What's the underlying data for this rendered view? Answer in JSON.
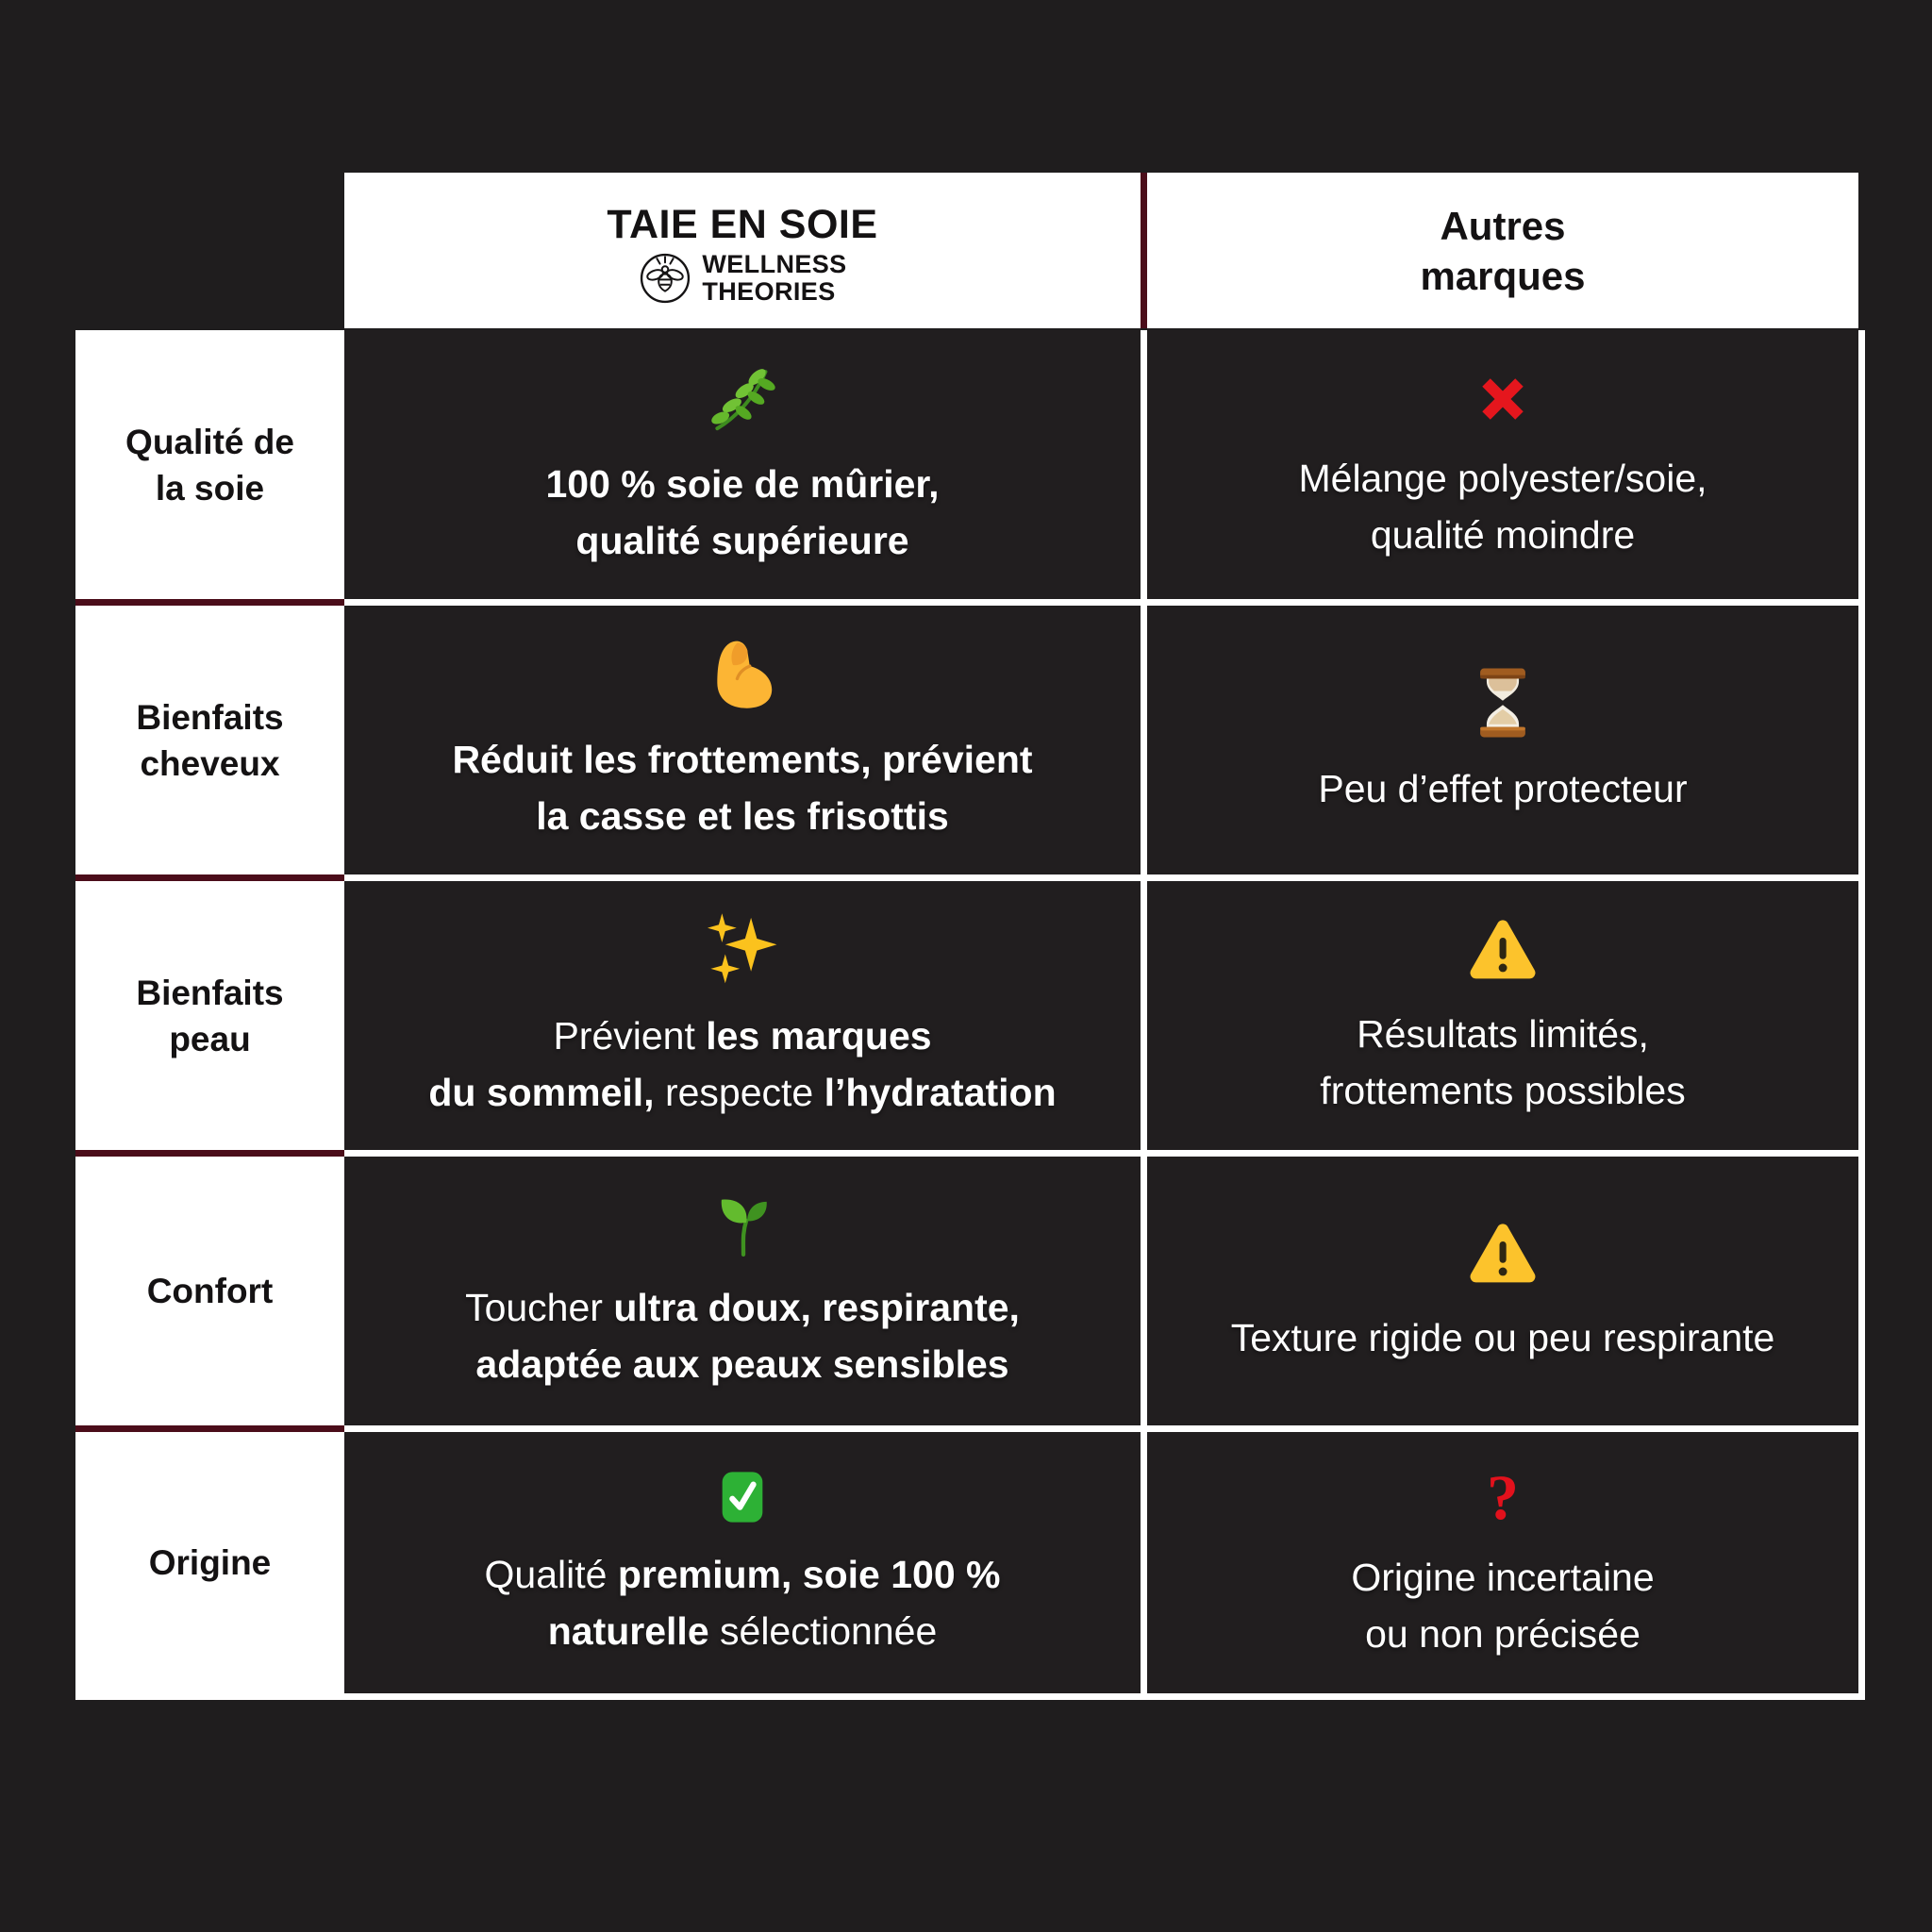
{
  "header": {
    "brand_title": "TAIE EN SOIE",
    "brand_name_line1": "WELLNESS",
    "brand_name_line2": "THEORIES",
    "brand_logo": "bee-logo-icon",
    "others_line1": "Autres",
    "others_line2": "marques"
  },
  "colors": {
    "background_dark": "#1f1d1e",
    "cell_dark": "#211e1f",
    "divider_maroon": "#4b0d1a",
    "divider_white": "#ffffff",
    "negative_red": "#e5161d",
    "warning_yellow": "#fbc32d",
    "positive_green": "#2db135",
    "question_red": "#e2111c"
  },
  "table": {
    "rows": [
      {
        "id": "qualite-de-la-soie",
        "label_lines": [
          "Qualité de",
          "la soie"
        ],
        "brand_cell": {
          "icon": "herb-icon",
          "lines": [
            [
              {
                "text": "100 % soie de mûrier,",
                "bold": true
              }
            ],
            [
              {
                "text": "qualité supérieure",
                "bold": true
              }
            ]
          ]
        },
        "others_cell": {
          "icon": "cross-mark-icon",
          "lines": [
            [
              {
                "text": "Mélange polyester/soie,"
              }
            ],
            [
              {
                "text": "qualité moindre"
              }
            ]
          ]
        }
      },
      {
        "id": "bienfaits-cheveux",
        "label_lines": [
          "Bienfaits",
          "cheveux"
        ],
        "brand_cell": {
          "icon": "flexed-biceps-icon",
          "lines": [
            [
              {
                "text": "Réduit les frottements, prévient",
                "bold": true
              }
            ],
            [
              {
                "text": "la casse et les frisottis",
                "bold": true
              }
            ]
          ]
        },
        "others_cell": {
          "icon": "hourglass-icon",
          "lines": [
            [
              {
                "text": "Peu d’effet protecteur"
              }
            ]
          ]
        }
      },
      {
        "id": "bienfaits-peau",
        "label_lines": [
          "Bienfaits",
          "peau"
        ],
        "brand_cell": {
          "icon": "sparkles-icon",
          "lines": [
            [
              {
                "text": "Prévient "
              },
              {
                "text": "les marques",
                "bold": true
              }
            ],
            [
              {
                "text": "du sommeil,",
                "bold": true
              },
              {
                "text": " respecte "
              },
              {
                "text": "l’hydratation",
                "bold": true
              }
            ]
          ]
        },
        "others_cell": {
          "icon": "warning-icon",
          "lines": [
            [
              {
                "text": "Résultats limités,"
              }
            ],
            [
              {
                "text": "frottements possibles"
              }
            ]
          ]
        }
      },
      {
        "id": "confort",
        "label_lines": [
          "Confort"
        ],
        "brand_cell": {
          "icon": "seedling-icon",
          "lines": [
            [
              {
                "text": "Toucher "
              },
              {
                "text": "ultra doux, respirante,",
                "bold": true
              }
            ],
            [
              {
                "text": "adaptée aux peaux sensibles",
                "bold": true
              }
            ]
          ]
        },
        "others_cell": {
          "icon": "warning-icon",
          "lines": [
            [
              {
                "text": "Texture rigide ou peu respirante"
              }
            ]
          ]
        }
      },
      {
        "id": "origine",
        "label_lines": [
          "Origine"
        ],
        "brand_cell": {
          "icon": "check-mark-icon",
          "lines": [
            [
              {
                "text": "Qualité "
              },
              {
                "text": "premium,",
                "bold": true
              },
              {
                "text": " "
              },
              {
                "text": "soie 100 %",
                "bold": true
              }
            ],
            [
              {
                "text": "naturelle",
                "bold": true
              },
              {
                "text": " sélectionnée"
              }
            ]
          ]
        },
        "others_cell": {
          "icon": "red-question-icon",
          "lines": [
            [
              {
                "text": "Origine incertaine"
              }
            ],
            [
              {
                "text": "ou non précisée"
              }
            ]
          ]
        }
      }
    ]
  }
}
